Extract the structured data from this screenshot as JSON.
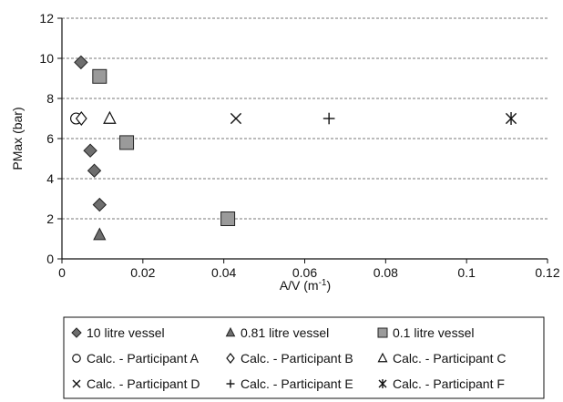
{
  "chart_data": {
    "type": "scatter",
    "xlabel": "A/V (m",
    "xlabel_sup": "-1",
    "xlabel_end": ")",
    "ylabel": "PMax (bar)",
    "xlim": [
      0,
      0.12
    ],
    "ylim": [
      0,
      12
    ],
    "x_ticks": [
      "0",
      "0.02",
      "0.04",
      "0.06",
      "0.08",
      "0.1",
      "0.12"
    ],
    "x_tick_values": [
      0,
      0.02,
      0.04,
      0.06,
      0.08,
      0.1,
      0.12
    ],
    "y_ticks": [
      "0",
      "2",
      "4",
      "6",
      "8",
      "10",
      "12"
    ],
    "y_tick_values": [
      0,
      2,
      4,
      6,
      8,
      10,
      12
    ],
    "grid": "horizontal dashed",
    "legend_position": "bottom",
    "series": [
      {
        "name": "10 litre vessel",
        "marker": "diamond-filled",
        "color": "#6e6e6e",
        "points": [
          [
            0.0047,
            9.8
          ],
          [
            0.007,
            5.4
          ],
          [
            0.008,
            4.4
          ],
          [
            0.0093,
            2.7
          ]
        ]
      },
      {
        "name": "0.81 litre vessel",
        "marker": "triangle-filled",
        "color": "#6e6e6e",
        "points": [
          [
            0.0093,
            1.2
          ]
        ]
      },
      {
        "name": "0.1 litre vessel",
        "marker": "square-filled",
        "color": "#9a9a9a",
        "points": [
          [
            0.0093,
            9.1
          ],
          [
            0.016,
            5.8
          ],
          [
            0.041,
            2.0
          ]
        ]
      },
      {
        "name": "Calc. - Participant A",
        "marker": "circle-open",
        "color": "#111111",
        "points": [
          [
            0.0035,
            7.0
          ]
        ]
      },
      {
        "name": "Calc. - Participant B",
        "marker": "diamond-open",
        "color": "#111111",
        "points": [
          [
            0.0048,
            7.0
          ]
        ]
      },
      {
        "name": "Calc. - Participant C",
        "marker": "triangle-open",
        "color": "#111111",
        "points": [
          [
            0.0118,
            7.0
          ]
        ]
      },
      {
        "name": "Calc. - Participant D",
        "marker": "x",
        "color": "#111111",
        "points": [
          [
            0.043,
            7.0
          ]
        ]
      },
      {
        "name": "Calc. - Participant E",
        "marker": "plus",
        "color": "#111111",
        "points": [
          [
            0.066,
            7.0
          ]
        ]
      },
      {
        "name": "Calc. - Participant F",
        "marker": "asterisk",
        "color": "#111111",
        "points": [
          [
            0.111,
            7.0
          ]
        ]
      }
    ]
  }
}
